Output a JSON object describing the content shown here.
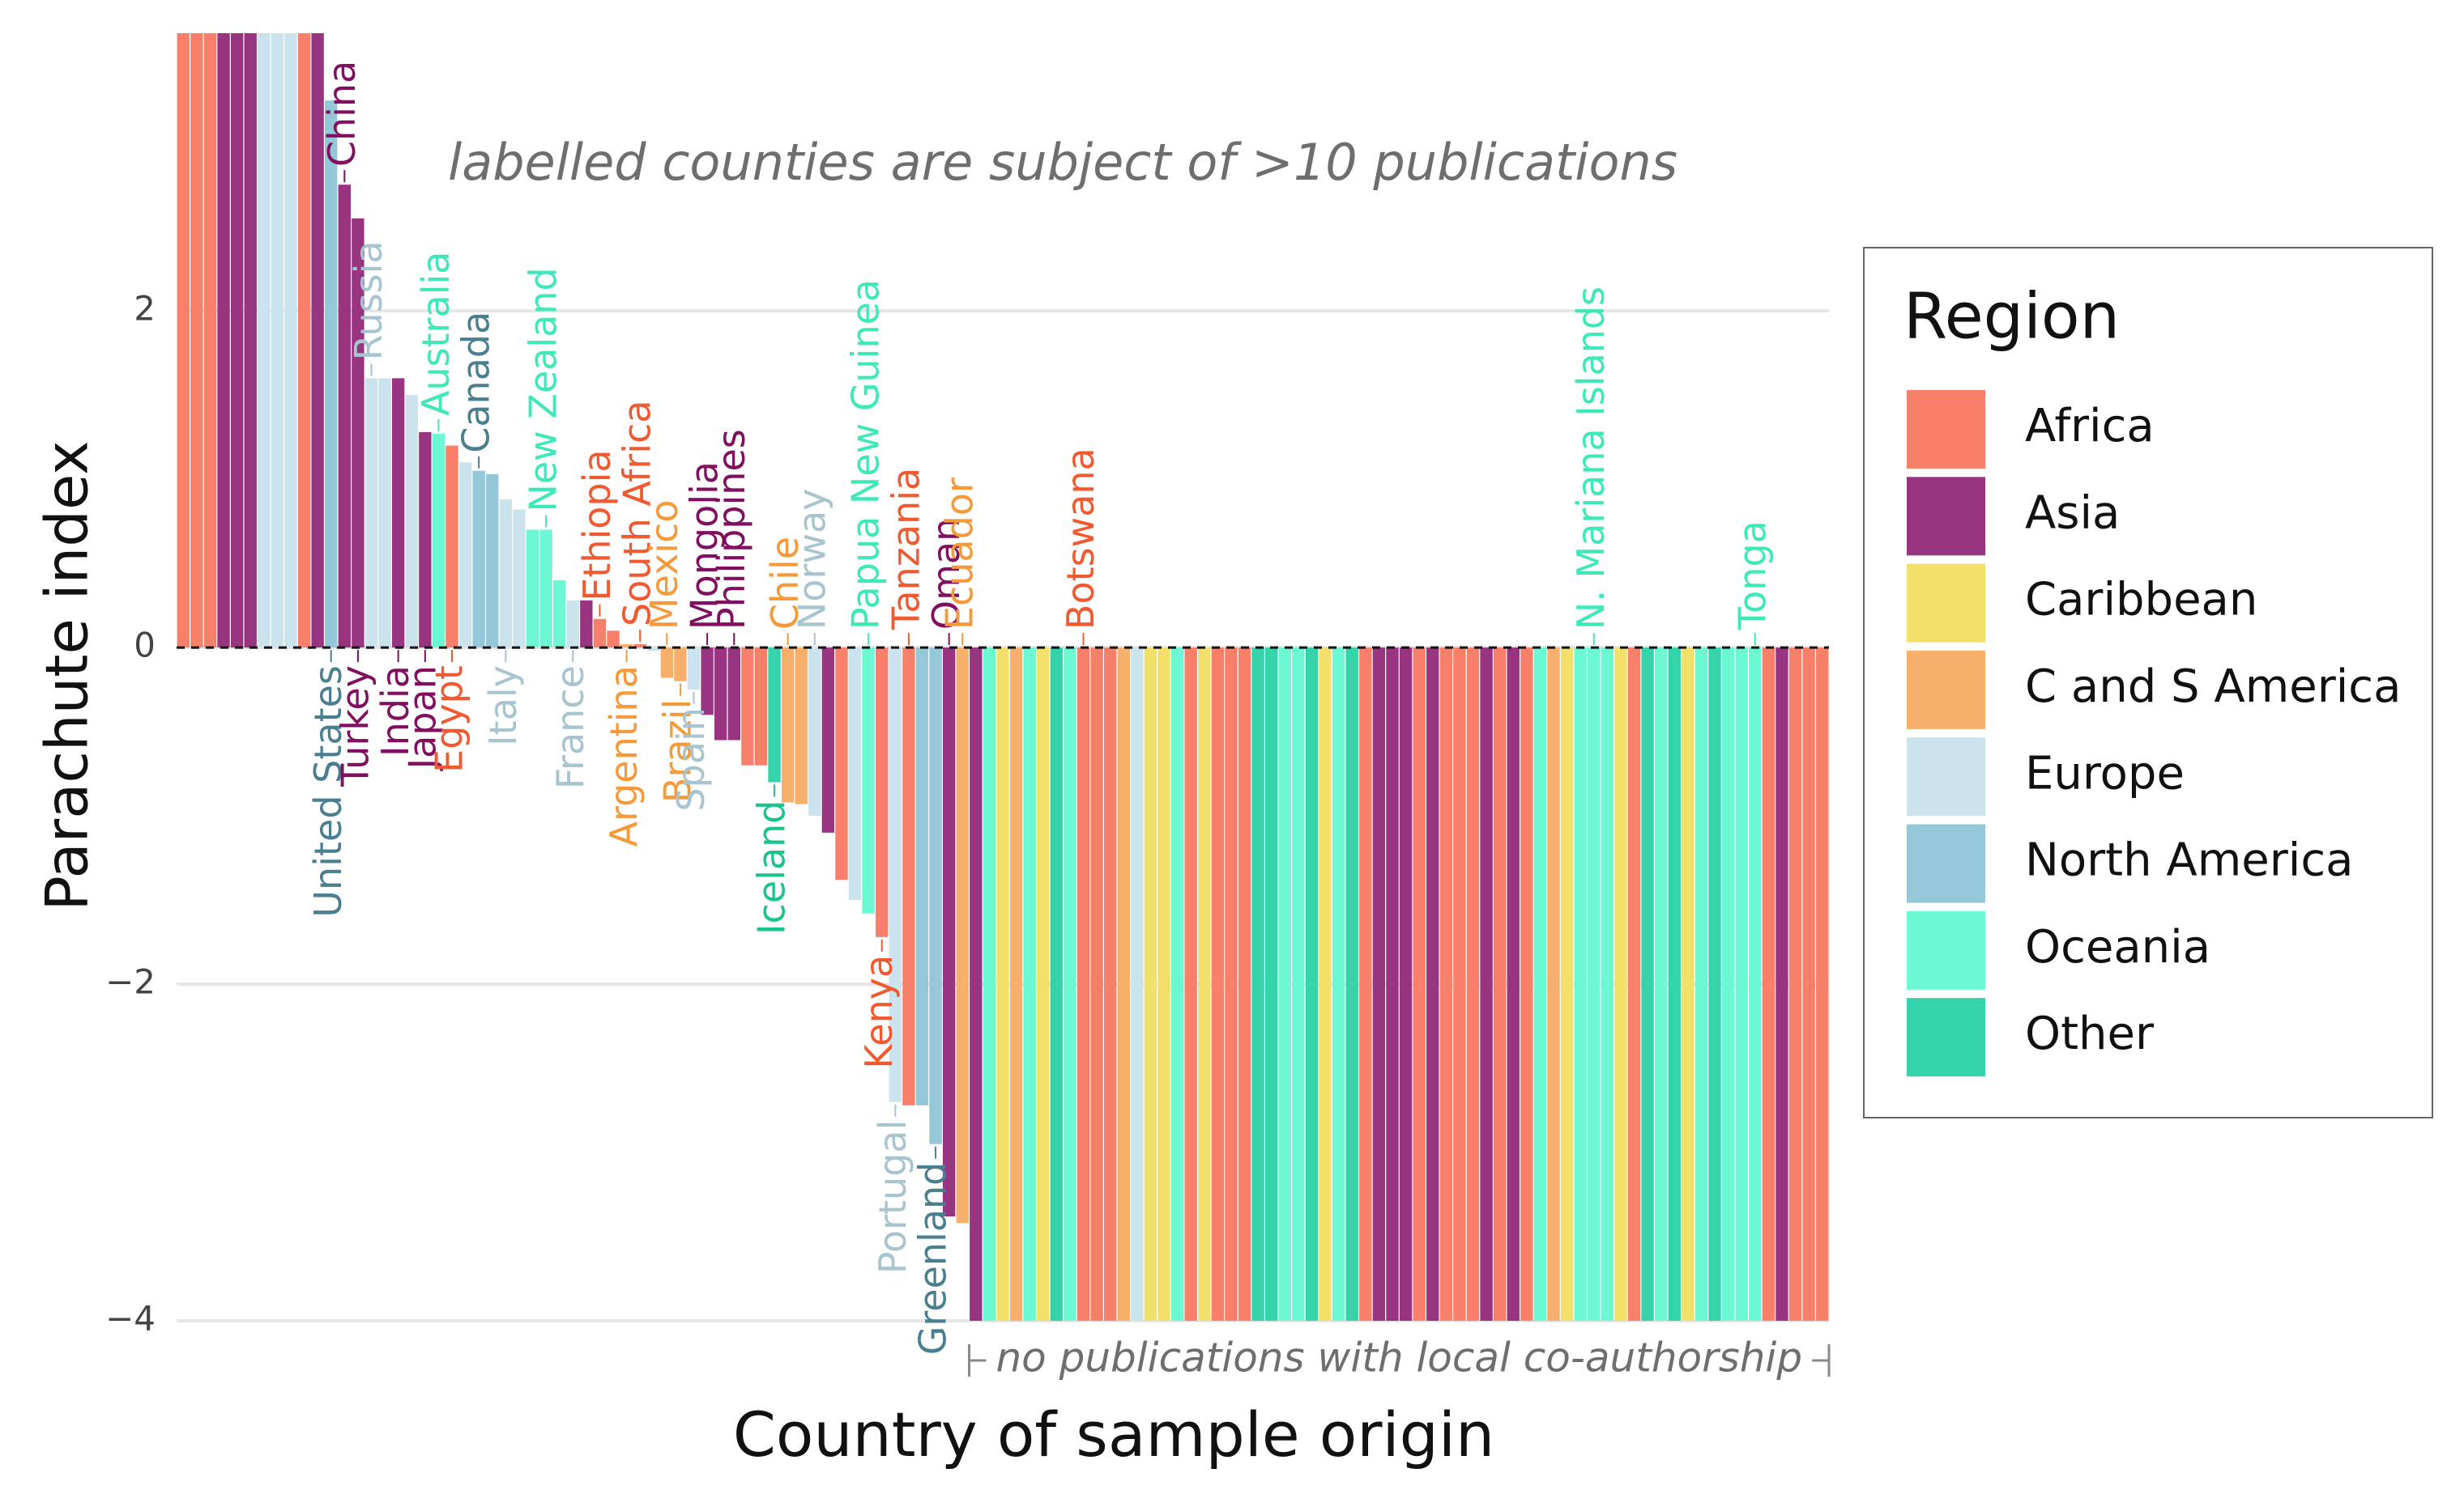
{
  "chart_data": {
    "type": "bar",
    "y_label": "Parachute index",
    "x_label": "Country of sample origin",
    "annotation": "labelled counties are subject of >10 publications",
    "bracket_label": "no publications with local co-authorship",
    "ylim": [
      -4,
      3.65
    ],
    "yticks": [
      {
        "value": -4,
        "label": "−4"
      },
      {
        "value": -2,
        "label": "−2"
      },
      0,
      2
    ],
    "grid": true,
    "zero_line": "dashed",
    "legend": {
      "title": "Region",
      "items": [
        {
          "name": "Africa",
          "color": "#f8806a",
          "label_color": "#f05a30"
        },
        {
          "name": "Asia",
          "color": "#993480",
          "label_color": "#800f60"
        },
        {
          "name": "Caribbean",
          "color": "#f3e06b",
          "label_color": "#c8a800"
        },
        {
          "name": "C and S America",
          "color": "#f6b06b",
          "label_color": "#f49a3a"
        },
        {
          "name": "Europe",
          "color": "#cbe3ec",
          "label_color": "#a8c4ce"
        },
        {
          "name": "North America",
          "color": "#94c7d8",
          "label_color": "#4a7f90"
        },
        {
          "name": "Oceania",
          "color": "#6cf8d2",
          "label_color": "#3ee8b8"
        },
        {
          "name": "Other",
          "color": "#35d3aa",
          "label_color": "#1bc48e"
        }
      ]
    },
    "categories": [
      null,
      null,
      null,
      null,
      null,
      null,
      null,
      null,
      null,
      null,
      null,
      "United States",
      "China",
      "Turkey",
      "Russia",
      null,
      "India",
      null,
      "Japan",
      "Australia",
      "Egypt",
      null,
      "Canada",
      null,
      "Italy",
      null,
      null,
      "New Zealand",
      null,
      "France",
      null,
      "Ethiopia",
      null,
      "Argentina",
      "South Africa",
      null,
      "Mexico",
      "Brazil",
      "Spain",
      "Mongolia",
      null,
      "Philippines",
      null,
      null,
      "Iceland",
      "Chile",
      null,
      "Norway",
      null,
      null,
      null,
      "Papua New Guinea",
      "Kenya",
      "Portugal",
      "Tanzania",
      null,
      "Greenland",
      "Oman",
      "Ecuador",
      null,
      null,
      null,
      null,
      null,
      null,
      null,
      null,
      "Botswana",
      null,
      null,
      null,
      null,
      null,
      null,
      null,
      null,
      null,
      null,
      null,
      null,
      null,
      null,
      null,
      null,
      null,
      null,
      null,
      null,
      null,
      null,
      null,
      null,
      null,
      null,
      null,
      null,
      null,
      null,
      null,
      null,
      null,
      null,
      null,
      null,
      null,
      "N. Mariana Islands",
      null,
      null,
      null,
      null,
      null,
      null,
      null,
      null,
      null,
      null,
      null,
      "Tonga",
      null,
      null,
      null,
      null,
      null
    ],
    "label_sides": [
      null,
      null,
      null,
      null,
      null,
      null,
      null,
      null,
      null,
      null,
      null,
      "below",
      "above",
      "below",
      "above",
      null,
      "below",
      null,
      "below",
      "above",
      "below",
      null,
      "above",
      null,
      "below",
      null,
      null,
      "above",
      null,
      "below",
      null,
      "above",
      null,
      "below",
      "above",
      null,
      "above",
      "below",
      "below",
      "above",
      null,
      "above",
      null,
      null,
      "below",
      "above",
      null,
      "above",
      null,
      null,
      null,
      "above",
      "below",
      "below",
      "above",
      null,
      "below",
      "above",
      "above",
      null,
      null,
      null,
      null,
      null,
      null,
      null,
      null,
      "above",
      null,
      null,
      null,
      null,
      null,
      null,
      null,
      null,
      null,
      null,
      null,
      null,
      null,
      null,
      null,
      null,
      null,
      null,
      null,
      null,
      null,
      null,
      null,
      null,
      null,
      null,
      null,
      null,
      null,
      null,
      null,
      null,
      null,
      null,
      null,
      null,
      null,
      "above",
      null,
      null,
      null,
      null,
      null,
      null,
      null,
      null,
      null,
      null,
      null,
      "above",
      null,
      null,
      null,
      null,
      null
    ],
    "values": [
      3.65,
      3.65,
      3.65,
      3.65,
      3.65,
      3.65,
      3.65,
      3.65,
      3.65,
      3.65,
      3.65,
      3.25,
      2.75,
      2.55,
      1.6,
      1.6,
      1.6,
      1.5,
      1.28,
      1.27,
      1.2,
      1.1,
      1.05,
      1.03,
      0.88,
      0.82,
      0.7,
      0.7,
      0.4,
      0.28,
      0.28,
      0.17,
      0.1,
      0.02,
      0.02,
      -0.02,
      -0.18,
      -0.2,
      -0.25,
      -0.4,
      -0.55,
      -0.55,
      -0.7,
      -0.7,
      -0.8,
      -0.92,
      -0.93,
      -1.0,
      -1.1,
      -1.38,
      -1.5,
      -1.58,
      -1.72,
      -2.7,
      -2.72,
      -2.72,
      -2.95,
      -3.38,
      -3.42,
      -4,
      -4,
      -4,
      -4,
      -4,
      -4,
      -4,
      -4,
      -4,
      -4,
      -4,
      -4,
      -4,
      -4,
      -4,
      -4,
      -4,
      -4,
      -4,
      -4,
      -4,
      -4,
      -4,
      -4,
      -4,
      -4,
      -4,
      -4,
      -4,
      -4,
      -4,
      -4,
      -4,
      -4,
      -4,
      -4,
      -4,
      -4,
      -4,
      -4,
      -4,
      -4,
      -4,
      -4,
      -4,
      -4,
      -4,
      -4,
      -4,
      -4,
      -4,
      -4,
      -4,
      -4,
      -4,
      -4,
      -4,
      -4,
      -4,
      -4,
      -4,
      -4,
      -4,
      -4
    ],
    "region_index": [
      0,
      0,
      0,
      1,
      1,
      1,
      4,
      4,
      4,
      0,
      1,
      5,
      1,
      1,
      4,
      4,
      1,
      4,
      1,
      6,
      0,
      4,
      5,
      5,
      4,
      4,
      6,
      6,
      6,
      4,
      1,
      0,
      0,
      3,
      0,
      4,
      3,
      3,
      4,
      1,
      1,
      1,
      0,
      0,
      7,
      3,
      3,
      4,
      1,
      0,
      4,
      6,
      0,
      4,
      0,
      5,
      5,
      1,
      3,
      1,
      6,
      2,
      3,
      6,
      2,
      7,
      6,
      0,
      0,
      0,
      3,
      4,
      2,
      2,
      6,
      0,
      2,
      0,
      0,
      0,
      7,
      7,
      6,
      6,
      7,
      2,
      6,
      7,
      0,
      1,
      1,
      1,
      0,
      1,
      0,
      0,
      0,
      1,
      0,
      1,
      0,
      6,
      3,
      2,
      6,
      6,
      6,
      2,
      0,
      7,
      6,
      7,
      2,
      6,
      7,
      6,
      6,
      6,
      0,
      1,
      0,
      0,
      0
    ]
  }
}
